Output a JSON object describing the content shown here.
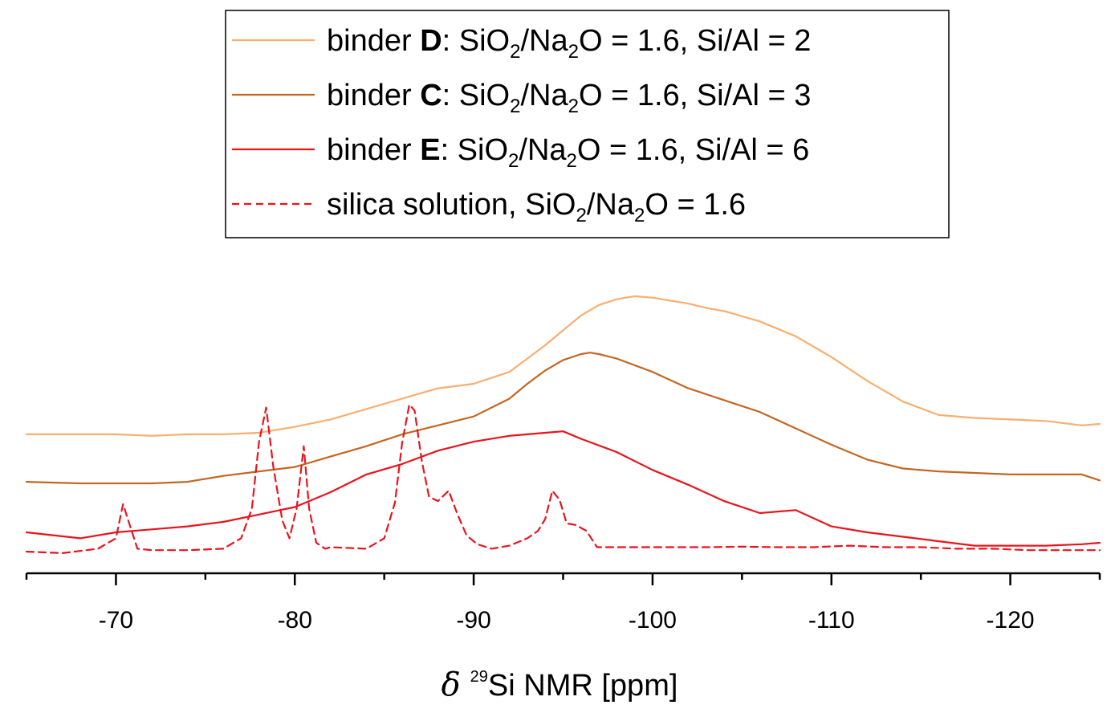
{
  "chart_data": {
    "type": "line",
    "title": "",
    "xlabel_symbol": "δ",
    "xlabel_isotope": "29",
    "xlabel_text": "Si NMR [ppm]",
    "ylabel": "",
    "xlim": [
      -65,
      -125
    ],
    "ylim": [
      0,
      10
    ],
    "x_major_ticks": [
      -70,
      -80,
      -90,
      -100,
      -110,
      -120
    ],
    "x_tick_labels": [
      "-70",
      "-80",
      "-90",
      "-100",
      "-110",
      "-120"
    ],
    "x_minor_ticks": [
      -65,
      -75,
      -85,
      -95,
      -105,
      -115,
      -125
    ],
    "grid": false,
    "legend_position": "top-center",
    "series": [
      {
        "key": "D",
        "name": "binder D: SiO2/Na2O = 1.6, Si/Al = 2",
        "legend_parts": {
          "pre": "binder ",
          "bold": "D",
          "a": ": SiO",
          "s1": "2",
          "b": "/Na",
          "s2": "2",
          "c": "O = 1.6, Si/Al = 2"
        },
        "color": "#F9AE70",
        "dash": false,
        "x": [
          -65,
          -68,
          -70,
          -72,
          -74,
          -76,
          -78,
          -80,
          -82,
          -84,
          -86,
          -88,
          -90,
          -92,
          -93,
          -94,
          -95,
          -96,
          -97,
          -98,
          -99,
          -100,
          -101,
          -102,
          -103,
          -104,
          -106,
          -108,
          -110,
          -112,
          -114,
          -116,
          -118,
          -120,
          -122,
          -124,
          -125
        ],
        "y": [
          4.3,
          4.3,
          4.3,
          4.25,
          4.3,
          4.3,
          4.35,
          4.55,
          4.8,
          5.15,
          5.5,
          5.85,
          6.0,
          6.4,
          6.85,
          7.3,
          7.8,
          8.3,
          8.65,
          8.85,
          8.95,
          8.9,
          8.8,
          8.7,
          8.55,
          8.45,
          8.1,
          7.6,
          6.9,
          6.1,
          5.4,
          4.95,
          4.85,
          4.8,
          4.75,
          4.6,
          4.65
        ]
      },
      {
        "key": "C",
        "name": "binder C: SiO2/Na2O = 1.6, Si/Al = 3",
        "legend_parts": {
          "pre": "binder ",
          "bold": "C",
          "a": ": SiO",
          "s1": "2",
          "b": "/Na",
          "s2": "2",
          "c": "O = 1.6, Si/Al = 3"
        },
        "color": "#C46622",
        "dash": false,
        "x": [
          -65,
          -68,
          -70,
          -72,
          -74,
          -76,
          -78,
          -80,
          -82,
          -84,
          -86,
          -88,
          -90,
          -92,
          -93,
          -94,
          -95,
          -96,
          -96.5,
          -97,
          -98,
          -100,
          -102,
          -104,
          -106,
          -108,
          -110,
          -112,
          -114,
          -116,
          -118,
          -120,
          -122,
          -124,
          -125
        ],
        "y": [
          2.7,
          2.65,
          2.65,
          2.65,
          2.7,
          2.9,
          3.05,
          3.2,
          3.55,
          3.9,
          4.3,
          4.6,
          4.9,
          5.5,
          6.0,
          6.45,
          6.8,
          7.0,
          7.05,
          7.0,
          6.85,
          6.4,
          5.85,
          5.45,
          5.05,
          4.5,
          3.95,
          3.45,
          3.15,
          3.05,
          3.0,
          2.95,
          2.95,
          2.95,
          2.75
        ]
      },
      {
        "key": "E",
        "name": "binder E: SiO2/Na2O = 1.6, Si/Al = 6",
        "legend_parts": {
          "pre": "binder ",
          "bold": "E",
          "a": ": SiO",
          "s1": "2",
          "b": "/Na",
          "s2": "2",
          "c": "O = 1.6, Si/Al = 6"
        },
        "color": "#E8141C",
        "dash": false,
        "x": [
          -65,
          -68,
          -70,
          -72,
          -74,
          -76,
          -78,
          -80,
          -82,
          -84,
          -86,
          -88,
          -90,
          -92,
          -94,
          -95,
          -96,
          -98,
          -100,
          -102,
          -104,
          -106,
          -108,
          -110,
          -112,
          -114,
          -116,
          -118,
          -120,
          -122,
          -124,
          -125
        ],
        "y": [
          1.0,
          0.8,
          1.0,
          1.1,
          1.2,
          1.35,
          1.6,
          1.85,
          2.35,
          2.95,
          3.3,
          3.75,
          4.05,
          4.25,
          4.35,
          4.4,
          4.15,
          3.7,
          3.1,
          2.6,
          2.05,
          1.65,
          1.75,
          1.2,
          1.0,
          0.85,
          0.7,
          0.55,
          0.55,
          0.55,
          0.6,
          0.65
        ]
      },
      {
        "key": "S",
        "name": "silica solution, SiO2/Na2O = 1.6",
        "legend_parts": {
          "pre": "silica solution, SiO",
          "bold": "",
          "a": "",
          "s1": "2",
          "b": "/Na",
          "s2": "2",
          "c": "O = 1.6"
        },
        "color": "#E8141C",
        "dash": true,
        "x": [
          -65,
          -67,
          -69,
          -70,
          -70.4,
          -70.8,
          -71.2,
          -72,
          -74,
          -76,
          -77,
          -77.6,
          -78,
          -78.4,
          -78.8,
          -79.3,
          -79.7,
          -80.1,
          -80.5,
          -80.8,
          -81.2,
          -81.7,
          -82,
          -84,
          -85,
          -85.6,
          -86,
          -86.4,
          -86.7,
          -87.1,
          -87.5,
          -88,
          -88.6,
          -89.1,
          -89.6,
          -90.2,
          -91,
          -92,
          -93,
          -93.6,
          -94,
          -94.4,
          -94.8,
          -95.2,
          -95.7,
          -96.3,
          -96.9,
          -97.2,
          -99,
          -101,
          -103,
          -105,
          -107,
          -109,
          -111,
          -113,
          -115,
          -117,
          -119,
          -121,
          -123,
          -125
        ],
        "y": [
          0.35,
          0.3,
          0.45,
          0.8,
          1.95,
          1.2,
          0.45,
          0.4,
          0.4,
          0.45,
          0.8,
          1.8,
          4.05,
          5.2,
          3.2,
          1.4,
          0.8,
          1.8,
          3.9,
          1.8,
          0.65,
          0.45,
          0.5,
          0.45,
          0.8,
          2.0,
          4.0,
          5.3,
          5.1,
          3.4,
          2.2,
          2.05,
          2.4,
          1.6,
          0.9,
          0.6,
          0.45,
          0.55,
          0.8,
          1.05,
          1.45,
          2.4,
          2.1,
          1.3,
          1.25,
          1.05,
          0.5,
          0.5,
          0.5,
          0.5,
          0.5,
          0.52,
          0.5,
          0.5,
          0.55,
          0.5,
          0.5,
          0.45,
          0.45,
          0.4,
          0.4,
          0.4
        ]
      }
    ]
  }
}
